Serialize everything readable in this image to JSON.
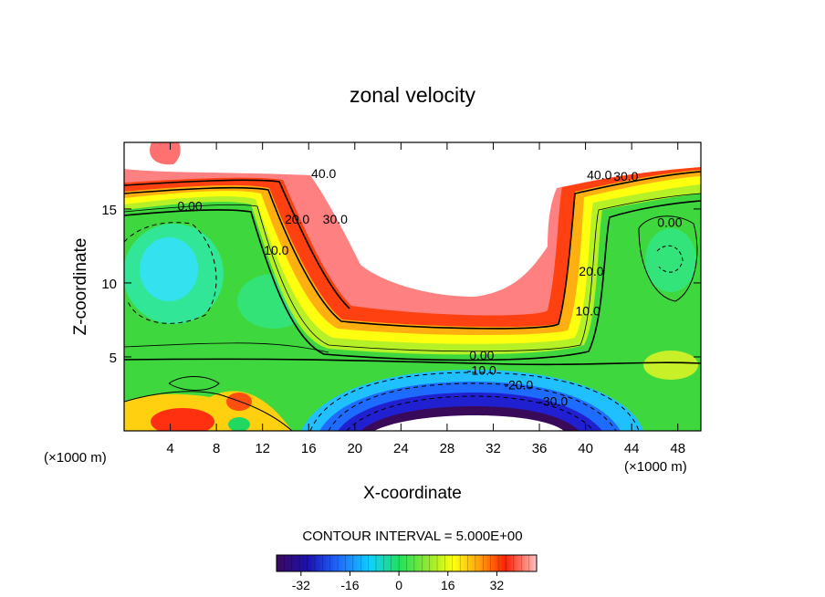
{
  "chart_data": {
    "type": "heatmap",
    "title": "zonal velocity",
    "xlabel": "X-coordinate",
    "ylabel": "Z-coordinate",
    "x_unit_left": "(×1000 m)",
    "x_unit_right": "(×1000 m)",
    "xlim": [
      0,
      50
    ],
    "ylim": [
      0,
      19.5
    ],
    "x_ticks": [
      4,
      8,
      12,
      16,
      20,
      24,
      28,
      32,
      36,
      40,
      44,
      48
    ],
    "y_ticks": [
      5,
      10,
      15
    ],
    "contour_interval_text": "CONTOUR INTERVAL = 5.000E+00",
    "colorbar": {
      "min": -40,
      "max": 45,
      "ticks": [
        -32,
        -16,
        0,
        16,
        32
      ]
    },
    "contour_labels": [
      {
        "text": "40.0",
        "x": 17.3,
        "y": 17.1
      },
      {
        "text": "0.00",
        "x": 5.7,
        "y": 14.9
      },
      {
        "text": "20.0",
        "x": 15,
        "y": 14.0
      },
      {
        "text": "30.0",
        "x": 18.3,
        "y": 14.0
      },
      {
        "text": "10.0",
        "x": 13.2,
        "y": 11.9
      },
      {
        "text": "40.0",
        "x": 41.2,
        "y": 17.0
      },
      {
        "text": "30.0",
        "x": 43.5,
        "y": 16.9
      },
      {
        "text": "0.00",
        "x": 47.3,
        "y": 13.8
      },
      {
        "text": "20.0",
        "x": 40.5,
        "y": 10.5
      },
      {
        "text": "10.0",
        "x": 40.2,
        "y": 7.8
      },
      {
        "text": "0.00",
        "x": 31,
        "y": 4.8
      },
      {
        "text": "-10.0",
        "x": 31,
        "y": 3.8
      },
      {
        "text": "-20.0",
        "x": 34.2,
        "y": 2.8
      },
      {
        "text": "-30.0",
        "x": 37.2,
        "y": 1.7
      }
    ]
  }
}
